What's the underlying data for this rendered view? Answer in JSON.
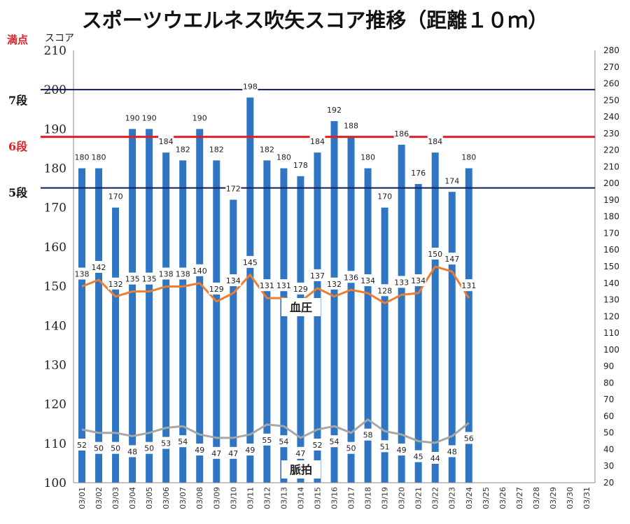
{
  "title": "スポーツウエルネス吹矢スコア推移（距離１０ｍ）",
  "labels": {
    "max": "満点",
    "unit": "スコア",
    "bp": "血圧",
    "pulse": "脈拍"
  },
  "colors": {
    "bar": "#2e75c4",
    "bp_line": "#ed7d31",
    "pulse_line": "#a6a6a6",
    "dan_navy": "#0d1f5c",
    "dan_red": "#e31e24"
  },
  "reference_lines": [
    {
      "label": "7段",
      "value": 200,
      "color": "#0d1f5c"
    },
    {
      "label": "6段",
      "value": 188,
      "color": "#e31e24"
    },
    {
      "label": "5段",
      "value": 175,
      "color": "#0d1f5c"
    }
  ],
  "chart_data": {
    "type": "bar",
    "categories": [
      "03/01",
      "03/02",
      "03/03",
      "03/04",
      "03/05",
      "03/06",
      "03/07",
      "03/08",
      "03/09",
      "03/10",
      "03/11",
      "03/12",
      "03/13",
      "03/14",
      "03/15",
      "03/16",
      "03/17",
      "03/18",
      "03/19",
      "03/20",
      "03/21",
      "03/22",
      "03/23",
      "03/24",
      "03/25",
      "03/26",
      "03/27",
      "03/28",
      "03/29",
      "03/30",
      "03/31"
    ],
    "series": [
      {
        "name": "",
        "axis": "left",
        "type": "bar",
        "values": [
          180,
          180,
          170,
          190,
          190,
          184,
          182,
          190,
          182,
          172,
          198,
          182,
          180,
          178,
          184,
          192,
          188,
          180,
          170,
          186,
          176,
          184,
          174,
          180,
          null,
          null,
          null,
          null,
          null,
          null,
          null
        ]
      },
      {
        "name": "血圧",
        "axis": "right",
        "type": "line",
        "values": [
          138,
          142,
          132,
          135,
          135,
          138,
          138,
          140,
          129,
          134,
          145,
          131,
          131,
          129,
          137,
          132,
          136,
          134,
          128,
          133,
          134,
          150,
          147,
          131,
          null,
          null,
          null,
          null,
          null,
          null,
          null
        ]
      },
      {
        "name": "脈拍",
        "axis": "right",
        "type": "line",
        "values": [
          52,
          50,
          50,
          48,
          50,
          53,
          54,
          49,
          47,
          47,
          49,
          55,
          54,
          47,
          52,
          54,
          50,
          58,
          51,
          49,
          45,
          44,
          48,
          56,
          null,
          null,
          null,
          null,
          null,
          null,
          null
        ]
      }
    ],
    "ylim": [
      100,
      210
    ],
    "yticks": [
      100,
      110,
      120,
      130,
      140,
      150,
      160,
      170,
      180,
      190,
      200,
      210
    ],
    "y2lim": [
      20,
      280
    ],
    "y2ticks": [
      20,
      30,
      40,
      50,
      60,
      70,
      80,
      90,
      100,
      110,
      120,
      130,
      140,
      150,
      160,
      170,
      180,
      190,
      200,
      210,
      220,
      230,
      240,
      250,
      260,
      270,
      280
    ],
    "grid": false,
    "legend": "none"
  }
}
